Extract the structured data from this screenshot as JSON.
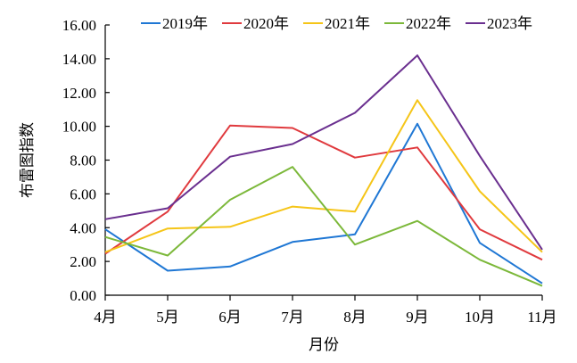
{
  "chart_data": {
    "type": "line",
    "title": "",
    "xlabel": "月份",
    "ylabel": "布雷图指数",
    "categories": [
      "4月",
      "5月",
      "6月",
      "7月",
      "8月",
      "9月",
      "10月",
      "11月"
    ],
    "ylim": [
      0,
      16
    ],
    "yticks": [
      "0.00",
      "2.00",
      "4.00",
      "6.00",
      "8.00",
      "10.00",
      "12.00",
      "14.00",
      "16.00"
    ],
    "grid": false,
    "legend_position": "top",
    "series": [
      {
        "name": "2019年",
        "color": "#1f77d4",
        "values": [
          3.9,
          1.45,
          1.7,
          3.15,
          3.6,
          10.15,
          3.1,
          0.7
        ]
      },
      {
        "name": "2020年",
        "color": "#e03a3e",
        "values": [
          2.45,
          4.95,
          10.05,
          9.9,
          8.15,
          8.75,
          3.9,
          2.1
        ]
      },
      {
        "name": "2021年",
        "color": "#f5c518",
        "values": [
          2.55,
          3.95,
          4.05,
          5.25,
          4.95,
          11.55,
          6.15,
          2.55
        ]
      },
      {
        "name": "2022年",
        "color": "#7cb83a",
        "values": [
          3.45,
          2.35,
          5.65,
          7.6,
          3.0,
          4.4,
          2.1,
          0.55
        ]
      },
      {
        "name": "2023年",
        "color": "#6a2f8f",
        "values": [
          4.5,
          5.15,
          8.2,
          8.95,
          10.8,
          14.2,
          8.25,
          2.7
        ]
      }
    ]
  }
}
